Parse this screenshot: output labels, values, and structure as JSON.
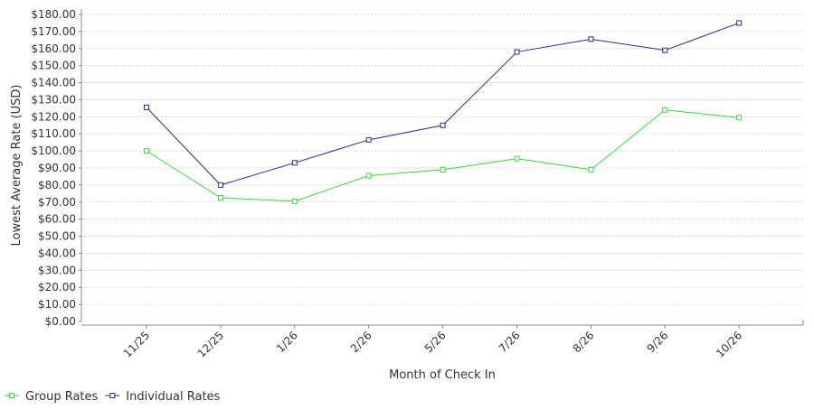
{
  "chart_data": {
    "type": "line",
    "title": "",
    "xlabel": "Month of Check In",
    "ylabel": "Lowest Average Rate (USD)",
    "categories": [
      "11/25",
      "12/25",
      "1/26",
      "2/26",
      "5/26",
      "7/26",
      "8/26",
      "9/26",
      "10/26"
    ],
    "ylim": [
      0,
      180
    ],
    "yticks": [
      0,
      10,
      20,
      30,
      40,
      50,
      60,
      70,
      80,
      90,
      100,
      110,
      120,
      130,
      140,
      150,
      160,
      170,
      180
    ],
    "ytick_labels": [
      "$0.00",
      "$10.00",
      "$20.00",
      "$30.00",
      "$40.00",
      "$50.00",
      "$60.00",
      "$70.00",
      "$80.00",
      "$90.00",
      "$100.00",
      "$110.00",
      "$120.00",
      "$130.00",
      "$140.00",
      "$150.00",
      "$160.00",
      "$170.00",
      "$180.00"
    ],
    "grid": true,
    "legend_position": "bottom-left",
    "series": [
      {
        "name": "Group Rates",
        "color": "#33dd33",
        "values": [
          100,
          72.5,
          70.5,
          85.5,
          89,
          95.5,
          89,
          124,
          119.5
        ]
      },
      {
        "name": "Individual Rates",
        "color": "#1f2b9a",
        "values": [
          125.5,
          80,
          93,
          106.5,
          115,
          158,
          165.5,
          159,
          175
        ]
      }
    ]
  }
}
